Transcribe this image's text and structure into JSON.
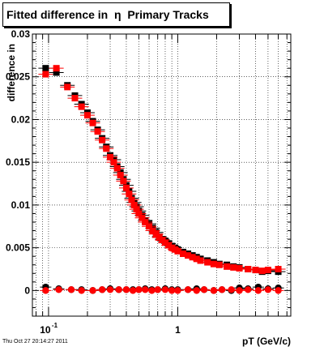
{
  "title": "Fitted difference in  η  Primary Tracks",
  "footer_timestamp": "Thu Oct 27 20:14:27 2011",
  "chart_data": {
    "type": "scatter",
    "xlabel": "pT (GeV/c)",
    "ylabel": "difference in",
    "x_scale": "log",
    "xlim": [
      0.075,
      7.5
    ],
    "ylim": [
      -0.003,
      0.03
    ],
    "grid": true,
    "x_tick_labels": [
      "10",
      "-1",
      "1"
    ],
    "y_tick_labels": [
      "0",
      "0.005",
      "0.01",
      "0.015",
      "0.02",
      "0.025",
      "0.03"
    ],
    "series": [
      {
        "color": "#000000",
        "marker": "square",
        "x": [
          0.095,
          0.115,
          0.14,
          0.16,
          0.18,
          0.2,
          0.22,
          0.24,
          0.26,
          0.28,
          0.3,
          0.32,
          0.34,
          0.36,
          0.38,
          0.4,
          0.42,
          0.44,
          0.46,
          0.48,
          0.5,
          0.53,
          0.56,
          0.6,
          0.64,
          0.68,
          0.72,
          0.76,
          0.8,
          0.85,
          0.9,
          0.95,
          1.0,
          1.1,
          1.2,
          1.3,
          1.4,
          1.5,
          1.7,
          1.9,
          2.1,
          2.4,
          2.7,
          3.0,
          3.5,
          4.0,
          4.5,
          5.0,
          6.0
        ],
        "y": [
          0.026,
          0.0255,
          0.024,
          0.0228,
          0.0218,
          0.0208,
          0.0198,
          0.0188,
          0.0178,
          0.0168,
          0.0158,
          0.0153,
          0.0145,
          0.0138,
          0.013,
          0.0123,
          0.0116,
          0.0108,
          0.0103,
          0.0098,
          0.0093,
          0.0088,
          0.0082,
          0.0078,
          0.0073,
          0.0068,
          0.0063,
          0.006,
          0.0058,
          0.0055,
          0.0052,
          0.005,
          0.0048,
          0.0045,
          0.0043,
          0.0041,
          0.0039,
          0.0037,
          0.0035,
          0.0033,
          0.0031,
          0.003,
          0.0028,
          0.0027,
          0.0025,
          0.0024,
          0.0022,
          0.0023,
          0.0022
        ]
      },
      {
        "color": "#ff0000",
        "marker": "square",
        "x": [
          0.095,
          0.115,
          0.14,
          0.16,
          0.18,
          0.2,
          0.22,
          0.24,
          0.26,
          0.28,
          0.3,
          0.32,
          0.34,
          0.36,
          0.38,
          0.4,
          0.42,
          0.44,
          0.46,
          0.48,
          0.5,
          0.53,
          0.56,
          0.6,
          0.64,
          0.68,
          0.72,
          0.76,
          0.8,
          0.85,
          0.9,
          0.95,
          1.0,
          1.1,
          1.2,
          1.3,
          1.4,
          1.5,
          1.7,
          1.9,
          2.1,
          2.4,
          2.7,
          3.0,
          3.5,
          4.0,
          4.5,
          5.0,
          6.0
        ],
        "y": [
          0.0253,
          0.026,
          0.0238,
          0.0225,
          0.0215,
          0.0205,
          0.0196,
          0.0186,
          0.0176,
          0.0166,
          0.0156,
          0.015,
          0.0143,
          0.0135,
          0.0128,
          0.012,
          0.0113,
          0.0106,
          0.01,
          0.0095,
          0.009,
          0.0085,
          0.008,
          0.0075,
          0.007,
          0.0066,
          0.0062,
          0.0059,
          0.0056,
          0.0053,
          0.005,
          0.0048,
          0.0046,
          0.0043,
          0.0041,
          0.0039,
          0.0037,
          0.0035,
          0.0033,
          0.0031,
          0.003,
          0.0028,
          0.0027,
          0.0026,
          0.0025,
          0.0024,
          0.0023,
          0.0024,
          0.0025
        ]
      },
      {
        "color": "#000000",
        "marker": "circle",
        "x": [
          0.095,
          0.12,
          0.15,
          0.18,
          0.22,
          0.26,
          0.3,
          0.35,
          0.4,
          0.45,
          0.5,
          0.56,
          0.63,
          0.7,
          0.8,
          0.9,
          1.0,
          1.2,
          1.4,
          1.6,
          1.9,
          2.2,
          2.6,
          3.0,
          3.5,
          4.2,
          5.0,
          6.0
        ],
        "y": [
          0.0004,
          0.0002,
          0.0001,
          0.0001,
          0.0,
          0.0001,
          0.0002,
          0.0001,
          0.0001,
          0.0001,
          0.0001,
          0.0002,
          0.0001,
          0.0001,
          0.0002,
          0.0001,
          0.0001,
          0.0001,
          0.0002,
          0.0001,
          0.0,
          0.0001,
          0.0,
          0.0003,
          0.0002,
          0.0004,
          0.0002,
          0.0003
        ]
      },
      {
        "color": "#ff0000",
        "marker": "circle",
        "x": [
          0.095,
          0.12,
          0.15,
          0.18,
          0.22,
          0.26,
          0.3,
          0.35,
          0.4,
          0.45,
          0.5,
          0.56,
          0.63,
          0.7,
          0.8,
          0.9,
          1.0,
          1.2,
          1.4,
          1.6,
          1.9,
          2.2,
          2.6,
          3.0,
          3.5,
          4.2,
          5.0,
          6.0
        ],
        "y": [
          0.0,
          0.0001,
          0.0001,
          0.0,
          0.0,
          0.0001,
          0.0001,
          0.0001,
          0.0001,
          0.0,
          0.0001,
          0.0001,
          0.0,
          0.0001,
          0.0001,
          0.0,
          0.0,
          0.0001,
          0.0,
          0.0001,
          0.0,
          0.0001,
          0.0001,
          0.0,
          0.0001,
          0.0,
          0.0001,
          0.0
        ]
      }
    ]
  }
}
